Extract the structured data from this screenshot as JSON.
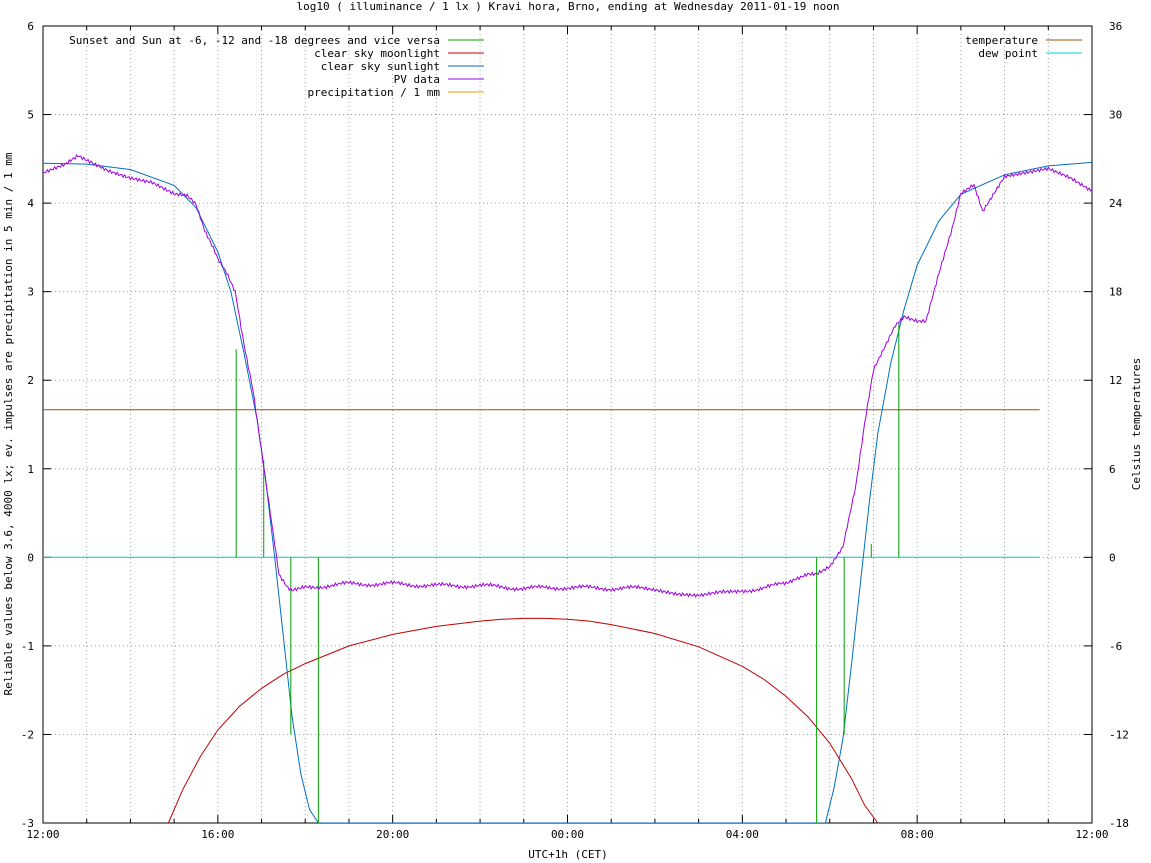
{
  "chart_data": {
    "type": "line",
    "title": "log10 ( illuminance / 1 lx ) Kravi hora, Brno, ending at Wednesday 2011-01-19 noon",
    "xlabel": "UTC+1h (CET)",
    "ylabel": "Reliable values below 3.6, 4000 lx; ev. impulses are precipitation in 5 min / 1 mm",
    "y2label": "Celsius temperatures",
    "x_unit": "hours since 12:00",
    "xlim": [
      0,
      24
    ],
    "ylim": [
      -3,
      6
    ],
    "y2lim": [
      -18,
      36
    ],
    "x_ticks": [
      {
        "x": 0,
        "label": "12:00"
      },
      {
        "x": 4,
        "label": "16:00"
      },
      {
        "x": 8,
        "label": "20:00"
      },
      {
        "x": 12,
        "label": "00:00"
      },
      {
        "x": 16,
        "label": "04:00"
      },
      {
        "x": 20,
        "label": "08:00"
      },
      {
        "x": 24,
        "label": "12:00"
      }
    ],
    "y_ticks": [
      -3,
      -2,
      -1,
      0,
      1,
      2,
      3,
      4,
      5,
      6
    ],
    "y2_ticks": [
      -18,
      -12,
      -6,
      0,
      6,
      12,
      18,
      24,
      30,
      36
    ],
    "grid": true,
    "legend_left": [
      {
        "label": "Sunset and Sun at -6, -12 and -18 degrees and vice versa",
        "color": "#00a000"
      },
      {
        "label": "clear sky moonlight",
        "color": "#c00000"
      },
      {
        "label": "clear sky sunlight",
        "color": "#0070c0"
      },
      {
        "label": "PV data",
        "color": "#a000e0"
      },
      {
        "label": "precipitation / 1 mm",
        "color": "#e0a000"
      }
    ],
    "legend_right": [
      {
        "label": "temperature",
        "color": "#a05000"
      },
      {
        "label": "dew point",
        "color": "#00d0d0"
      }
    ],
    "series": {
      "sun_events": {
        "color": "#00a000",
        "impulses": [
          {
            "x": 4.42,
            "y": 2.35
          },
          {
            "x": 5.05,
            "y": 1.1
          },
          {
            "x": 5.67,
            "y": -2.0
          },
          {
            "x": 6.3,
            "y": -3.0
          },
          {
            "x": 17.7,
            "y": -3.0
          },
          {
            "x": 18.33,
            "y": -2.0
          },
          {
            "x": 18.95,
            "y": 0.15
          },
          {
            "x": 19.58,
            "y": 2.65
          }
        ]
      },
      "moonlight": {
        "color": "#c00000",
        "x": [
          2.87,
          3.2,
          3.6,
          4.0,
          4.5,
          5.0,
          5.5,
          6.0,
          7.0,
          8.0,
          9.0,
          10.0,
          10.5,
          11.0,
          11.5,
          12.0,
          12.5,
          13.0,
          14.0,
          15.0,
          16.0,
          16.5,
          17.0,
          17.5,
          18.0,
          18.5,
          18.8,
          19.1
        ],
        "y": [
          -3.0,
          -2.62,
          -2.25,
          -1.95,
          -1.68,
          -1.48,
          -1.32,
          -1.2,
          -1.0,
          -0.87,
          -0.78,
          -0.72,
          -0.7,
          -0.69,
          -0.69,
          -0.7,
          -0.72,
          -0.76,
          -0.86,
          -1.01,
          -1.23,
          -1.38,
          -1.57,
          -1.8,
          -2.1,
          -2.5,
          -2.8,
          -3.0
        ]
      },
      "sunlight": {
        "color": "#0070c0",
        "x": [
          0.0,
          1.0,
          2.0,
          3.0,
          3.5,
          4.0,
          4.3,
          4.6,
          4.9,
          5.1,
          5.3,
          5.5,
          5.7,
          5.9,
          6.1,
          6.3,
          17.9,
          18.1,
          18.3,
          18.5,
          18.7,
          18.9,
          19.1,
          19.4,
          19.7,
          20.0,
          20.5,
          21.0,
          22.0,
          23.0,
          24.0
        ],
        "y": [
          4.45,
          4.44,
          4.38,
          4.2,
          3.95,
          3.45,
          3.0,
          2.3,
          1.55,
          0.85,
          0.0,
          -0.9,
          -1.8,
          -2.45,
          -2.85,
          -3.0,
          -3.0,
          -2.6,
          -2.05,
          -1.2,
          -0.3,
          0.6,
          1.4,
          2.2,
          2.8,
          3.3,
          3.8,
          4.1,
          4.32,
          4.42,
          4.46
        ]
      },
      "pv_data": {
        "color": "#a000e0",
        "x": [
          0.0,
          0.5,
          0.8,
          1.0,
          1.5,
          2.0,
          2.5,
          3.0,
          3.3,
          3.5,
          3.7,
          3.9,
          4.0,
          4.2,
          4.4,
          4.6,
          4.8,
          5.0,
          5.2,
          5.4,
          5.6,
          5.7,
          6.0,
          7.0,
          8.0,
          9.0,
          10.0,
          11.0,
          12.0,
          13.0,
          14.0,
          14.5,
          15.0,
          15.5,
          16.0,
          17.0,
          17.5,
          17.7,
          18.0,
          18.3,
          18.6,
          18.8,
          19.0,
          19.3,
          19.5,
          19.7,
          20.0,
          20.2,
          20.5,
          20.8,
          21.0,
          21.3,
          21.5,
          22.0,
          22.5,
          23.0,
          23.5,
          24.0
        ],
        "y": [
          4.35,
          4.45,
          4.55,
          4.5,
          4.38,
          4.3,
          4.25,
          4.12,
          4.1,
          4.0,
          3.7,
          3.5,
          3.38,
          3.22,
          3.0,
          2.4,
          1.9,
          1.2,
          0.5,
          -0.2,
          -0.35,
          -0.38,
          -0.34,
          -0.3,
          -0.3,
          -0.32,
          -0.32,
          -0.35,
          -0.34,
          -0.35,
          -0.35,
          -0.4,
          -0.42,
          -0.38,
          -0.38,
          -0.3,
          -0.2,
          -0.2,
          -0.12,
          0.1,
          0.8,
          1.5,
          2.1,
          2.4,
          2.6,
          2.7,
          2.65,
          2.65,
          3.2,
          3.7,
          4.1,
          4.2,
          3.9,
          4.3,
          4.35,
          4.4,
          4.3,
          4.15
        ]
      },
      "temperature": {
        "color": "#a05000",
        "axis": "y2",
        "x": [
          0.0,
          22.8
        ],
        "y": [
          10.0,
          10.0
        ]
      },
      "dew_point": {
        "color": "#00d0d0",
        "axis": "y2",
        "x": [
          0.0,
          22.8
        ],
        "y": [
          0.0,
          0.0
        ]
      }
    }
  }
}
